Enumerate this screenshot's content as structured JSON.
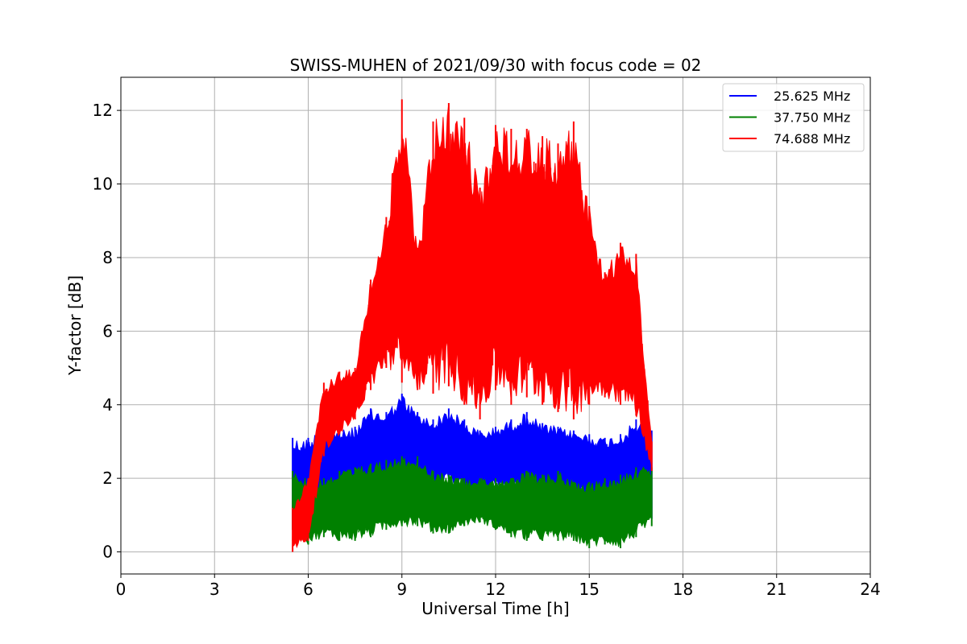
{
  "chart_data": {
    "type": "line",
    "title": "SWISS-MUHEN of 2021/09/30 with focus code = 02",
    "xlabel": "Universal Time [h]",
    "ylabel": "Y-factor [dB]",
    "xlim": [
      0,
      24
    ],
    "ylim": [
      -0.6,
      12.9
    ],
    "xticks": [
      0,
      3,
      6,
      9,
      12,
      15,
      18,
      21,
      24
    ],
    "yticks": [
      0,
      2,
      4,
      6,
      8,
      10,
      12
    ],
    "grid": true,
    "legend_position": "top-right",
    "series": [
      {
        "name": "25.625 MHz",
        "color": "#0000ff",
        "x": [
          5.5,
          6.0,
          6.5,
          7.0,
          7.5,
          8.0,
          8.5,
          9.0,
          9.5,
          10.0,
          10.5,
          11.0,
          11.5,
          12.0,
          12.5,
          13.0,
          13.5,
          14.0,
          14.5,
          15.0,
          15.5,
          16.0,
          16.5,
          17.0
        ],
        "low": [
          0.6,
          0.5,
          1.1,
          1.4,
          1.2,
          1.6,
          1.8,
          1.9,
          1.7,
          1.6,
          1.8,
          1.6,
          1.4,
          1.7,
          1.6,
          1.7,
          1.5,
          1.6,
          1.6,
          1.4,
          1.5,
          1.3,
          1.3,
          0.9
        ],
        "high": [
          3.1,
          3.1,
          3.4,
          3.3,
          3.4,
          3.9,
          3.8,
          4.3,
          3.8,
          3.6,
          3.9,
          3.6,
          3.3,
          3.4,
          3.6,
          3.8,
          3.5,
          3.4,
          3.3,
          3.2,
          3.1,
          3.2,
          3.6,
          3.3
        ]
      },
      {
        "name": "37.750 MHz",
        "color": "#008000",
        "x": [
          5.5,
          6.0,
          6.5,
          7.0,
          7.5,
          8.0,
          8.5,
          9.0,
          9.5,
          10.0,
          10.5,
          11.0,
          11.5,
          12.0,
          12.5,
          13.0,
          13.5,
          14.0,
          14.5,
          15.0,
          15.5,
          16.0,
          16.5,
          17.0
        ],
        "low": [
          0.6,
          0.2,
          0.4,
          0.3,
          0.3,
          0.4,
          0.6,
          0.7,
          0.7,
          0.5,
          0.5,
          0.7,
          0.8,
          0.6,
          0.4,
          0.3,
          0.3,
          0.3,
          0.3,
          0.1,
          0.2,
          0.1,
          0.4,
          0.7
        ],
        "high": [
          2.2,
          2.0,
          2.0,
          2.2,
          2.3,
          2.4,
          2.5,
          2.6,
          2.6,
          2.2,
          2.1,
          2.0,
          2.0,
          2.0,
          2.0,
          2.2,
          2.1,
          2.2,
          1.9,
          1.9,
          2.0,
          2.1,
          2.3,
          2.3
        ]
      },
      {
        "name": "74.688 MHz",
        "color": "#ff0000",
        "x": [
          5.5,
          6.0,
          6.5,
          7.0,
          7.5,
          8.0,
          8.5,
          9.0,
          9.5,
          10.0,
          10.5,
          11.0,
          11.5,
          12.0,
          12.5,
          13.0,
          13.5,
          14.0,
          14.5,
          15.0,
          15.5,
          16.0,
          16.5,
          17.0
        ],
        "low": [
          0.0,
          0.3,
          2.6,
          3.2,
          3.6,
          4.4,
          5.0,
          4.6,
          4.4,
          4.3,
          4.5,
          4.0,
          3.6,
          4.4,
          4.0,
          4.2,
          4.0,
          3.8,
          3.6,
          4.0,
          4.2,
          4.0,
          3.7,
          2.2
        ],
        "high": [
          1.2,
          2.0,
          4.6,
          4.9,
          5.0,
          7.4,
          9.1,
          12.3,
          8.2,
          11.7,
          12.2,
          11.8,
          9.9,
          11.6,
          11.5,
          11.5,
          11.3,
          11.1,
          11.7,
          9.4,
          7.6,
          8.4,
          8.1,
          3.0
        ]
      }
    ]
  }
}
